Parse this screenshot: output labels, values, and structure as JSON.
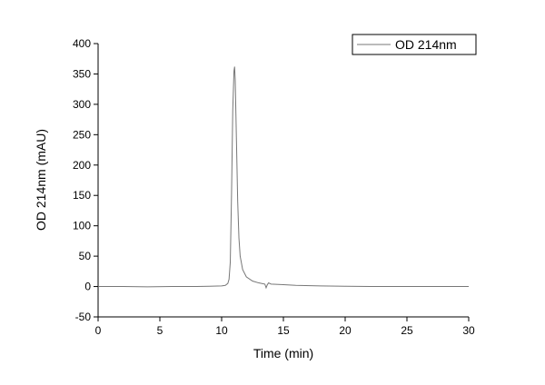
{
  "chart_data": {
    "type": "line",
    "x_label": "Time (min)",
    "y_label": "OD 214nm (mAU)",
    "xlim": [
      0,
      30
    ],
    "xticks": [
      0,
      5,
      10,
      15,
      20,
      25,
      30
    ],
    "ylim": [
      -50,
      400
    ],
    "yticks": [
      -50,
      0,
      50,
      100,
      150,
      200,
      250,
      300,
      350,
      400
    ],
    "legend": "top-right",
    "x": [
      0,
      2,
      4,
      6,
      8,
      9,
      10,
      10.3,
      10.5,
      10.6,
      10.7,
      10.8,
      10.9,
      11.0,
      11.05,
      11.1,
      11.2,
      11.3,
      11.4,
      11.5,
      11.7,
      12,
      12.5,
      13,
      13.5,
      13.6,
      13.7,
      13.8,
      14,
      15,
      16,
      18,
      20,
      22,
      25,
      28,
      30
    ],
    "series": [
      {
        "name": "OD 214nm",
        "color": "#777777",
        "values": [
          0,
          0,
          -0.5,
          0,
          0,
          0.5,
          1,
          2,
          5,
          12,
          40,
          150,
          290,
          355,
          362,
          340,
          240,
          140,
          80,
          50,
          28,
          16,
          9,
          6,
          4,
          -2,
          3,
          6,
          4,
          3,
          2,
          1,
          0.5,
          0,
          0,
          0,
          0
        ]
      }
    ]
  }
}
